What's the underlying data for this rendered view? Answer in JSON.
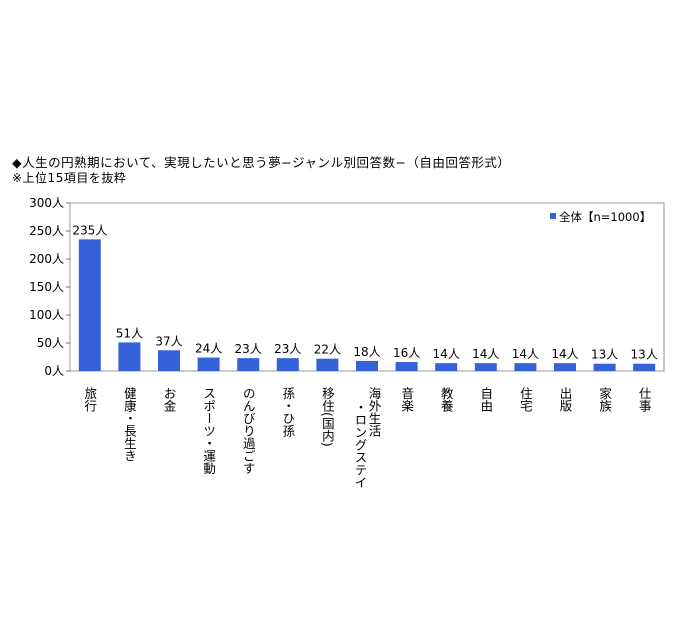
{
  "title": "◆人生の円熟期において、実現したいと思う夢−ジャンル別回答数−（自由回答形式）",
  "subtitle": "※上位15項目を抜粋",
  "chart_data": {
    "type": "bar",
    "title": "◆人生の円熟期において、実現したいと思う夢−ジャンル別回答数−（自由回答形式）",
    "subtitle": "※上位15項目を抜粋",
    "categories": [
      "旅行",
      "健康・長生き",
      "お金",
      "スポーツ・運動",
      "のんびり過ごす",
      "孫・ひ孫",
      "移住(国内)",
      "海外生活・ロングステイ",
      "音楽",
      "教養",
      "自由",
      "住宅",
      "出版",
      "家族",
      "仕事"
    ],
    "category_label_lines": [
      [
        "旅行"
      ],
      [
        "健康・長生き"
      ],
      [
        "お金"
      ],
      [
        "スポーツ・運動"
      ],
      [
        "のんびり過ごす"
      ],
      [
        "孫・ひ孫"
      ],
      [
        "移住(国内)"
      ],
      [
        "・ロングステイ",
        "海外生活"
      ],
      [
        "音楽"
      ],
      [
        "教養"
      ],
      [
        "自由"
      ],
      [
        "住宅"
      ],
      [
        "出版"
      ],
      [
        "家族"
      ],
      [
        "仕事"
      ]
    ],
    "series": [
      {
        "name": "全体【n=1000】",
        "values": [
          235,
          51,
          37,
          24,
          23,
          23,
          22,
          18,
          16,
          14,
          14,
          14,
          14,
          13,
          13
        ],
        "color": "#3562d9"
      }
    ],
    "data_labels": [
      "235人",
      "51人",
      "37人",
      "24人",
      "23人",
      "23人",
      "22人",
      "18人",
      "16人",
      "14人",
      "14人",
      "14人",
      "14人",
      "13人",
      "13人"
    ],
    "y_ticks": [
      0,
      50,
      100,
      150,
      200,
      250,
      300
    ],
    "y_tick_labels": [
      "0人",
      "50人",
      "100人",
      "150人",
      "200人",
      "250人",
      "300人"
    ],
    "ylim": [
      0,
      300
    ],
    "grid": false,
    "legend": {
      "position": "top-right",
      "label": "全体【n=1000】",
      "marker": "■"
    }
  }
}
